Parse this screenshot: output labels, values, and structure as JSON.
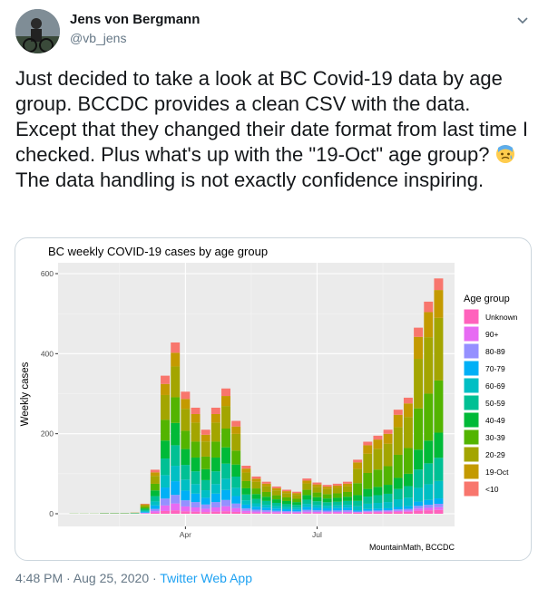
{
  "author": {
    "name": "Jens von Bergmann",
    "handle": "@vb_jens"
  },
  "tweet": {
    "text_before_emoji": "Just decided to take a look at BC Covid-19 data by age group. BCCDC provides a clean CSV with the data. Except that they changed their date format from last time I checked. Plus what's up with the \"19-Oct\" age group? ",
    "text_after_emoji": " The data handling is not exactly confidence inspiring.",
    "emoji": "anxious-face-with-sweat-emoji"
  },
  "footer": {
    "time": "4:48 PM · Aug 25, 2020 · ",
    "app": "Twitter Web App"
  },
  "icons": [
    "chevron-down-icon",
    "avatar",
    "anxious-face-with-sweat-emoji"
  ],
  "colors": {
    "link": "#1da1f2",
    "muted": "#657786",
    "panel": "#ebebeb"
  },
  "chart_data": {
    "type": "bar",
    "stacked": true,
    "title": "BC weekly COVID-19 cases by age group",
    "ylabel": "Weekly cases",
    "xlabel": "",
    "caption": "MountainMath, BCCDC",
    "ylim": [
      0,
      620
    ],
    "yticks": [
      0,
      200,
      400,
      600
    ],
    "xticks": [
      {
        "label": "Apr",
        "week": 11
      },
      {
        "label": "Jul",
        "week": 24
      }
    ],
    "grid": true,
    "legend_title": "Age group",
    "legend_position": "right",
    "series": [
      {
        "name": "Unknown",
        "color": "#FF62BC"
      },
      {
        "name": "90+",
        "color": "#E76BF3"
      },
      {
        "name": "80-89",
        "color": "#9590FF"
      },
      {
        "name": "70-79",
        "color": "#00B0F6"
      },
      {
        "name": "60-69",
        "color": "#00BFC4"
      },
      {
        "name": "50-59",
        "color": "#00C094"
      },
      {
        "name": "40-49",
        "color": "#00BA38"
      },
      {
        "name": "30-39",
        "color": "#53B400"
      },
      {
        "name": "20-29",
        "color": "#A3A500"
      },
      {
        "name": "19-Oct",
        "color": "#C49A00"
      },
      {
        "name": "<10",
        "color": "#F8766D"
      }
    ],
    "weekly_totals": [
      1,
      1,
      1,
      2,
      2,
      2,
      3,
      25,
      110,
      345,
      428,
      305,
      265,
      210,
      265,
      313,
      232,
      120,
      93,
      80,
      68,
      60,
      55,
      88,
      78,
      72,
      75,
      80,
      135,
      180,
      195,
      210,
      260,
      290,
      465,
      530,
      588
    ],
    "weekly_breakdown_pct": {
      "Unknown": 2,
      "90+": 4,
      "80-89": 5,
      "70-79": 8,
      "60-69": 9,
      "50-59": 12,
      "40-49": 13,
      "30-39": 15,
      "20-29": 18,
      "19-Oct": 8,
      "<10": 6
    }
  }
}
